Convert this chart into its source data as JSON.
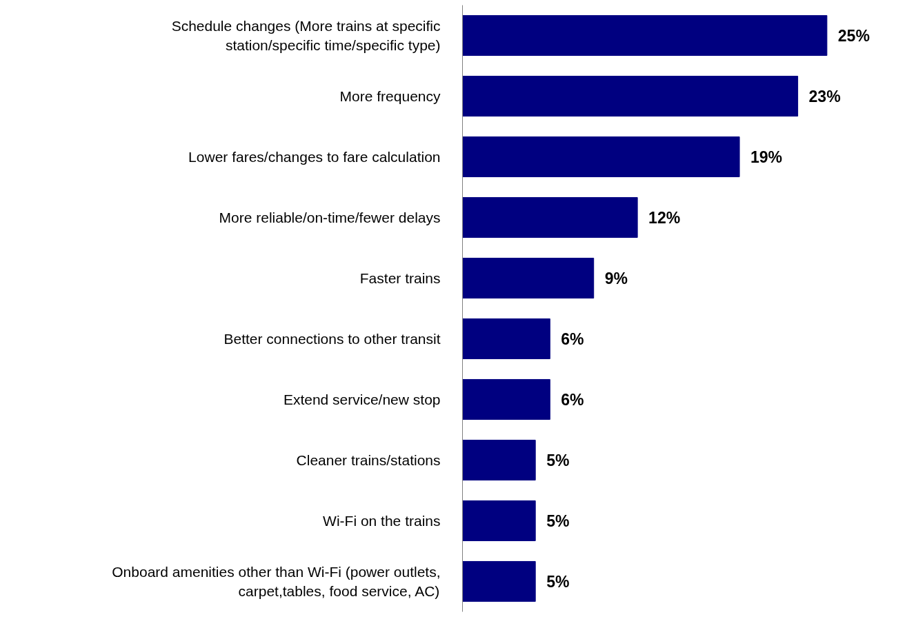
{
  "chart_data": {
    "type": "bar",
    "orientation": "horizontal",
    "categories": [
      "Schedule changes (More trains at specific station/specific time/specific type)",
      "More frequency",
      "Lower fares/changes to fare calculation",
      "More reliable/on-time/fewer delays",
      "Faster trains",
      "Better connections to other transit",
      "Extend service/new stop",
      "Cleaner trains/stations",
      "Wi-Fi on the trains",
      "Onboard amenities other than Wi-Fi (power outlets, carpet,tables, food service, AC)"
    ],
    "values": [
      25,
      23,
      19,
      12,
      9,
      6,
      6,
      5,
      5,
      5
    ],
    "value_labels": [
      "25%",
      "23%",
      "19%",
      "12%",
      "9%",
      "6%",
      "6%",
      "5%",
      "5%",
      "5%"
    ],
    "color": "#000080",
    "tick_labels": "y",
    "grid": false
  }
}
